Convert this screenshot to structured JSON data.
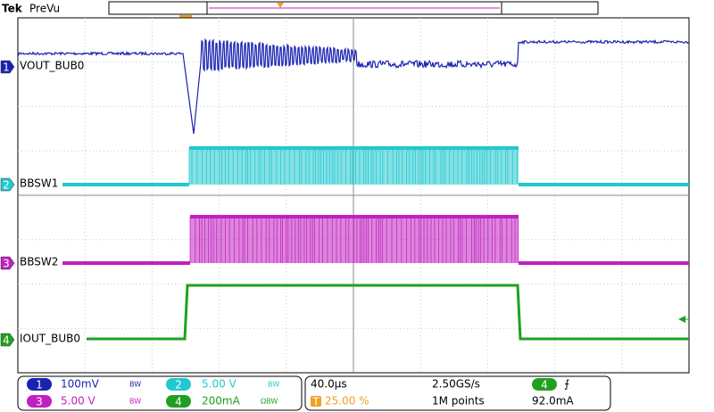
{
  "header": {
    "brand": "Tek",
    "mode": "PreVu"
  },
  "trigger_marker": "T",
  "channels": [
    {
      "number": "1",
      "label": "VOUT_BUB0"
    },
    {
      "number": "2",
      "label": "BBSW1"
    },
    {
      "number": "3",
      "label": "BBSW2"
    },
    {
      "number": "4",
      "label": "IOUT_BUB0"
    }
  ],
  "status": {
    "ch1": {
      "number": "1",
      "scale": "100mV",
      "bw": "BW"
    },
    "ch2": {
      "number": "2",
      "scale": "5.00 V",
      "bw": "BW"
    },
    "ch3": {
      "number": "3",
      "scale": "5.00 V",
      "bw": "BW"
    },
    "ch4": {
      "number": "4",
      "scale": "200mA",
      "bw": "ΩBW"
    },
    "timebase": "40.0µs",
    "trigger_position_icon": "T",
    "trigger_position": "25.00 %",
    "sample_rate": "2.50GS/s",
    "record_length": "1M points",
    "trigger_source": "4",
    "trigger_slope": "⨍",
    "trigger_level": "92.0mA"
  }
}
